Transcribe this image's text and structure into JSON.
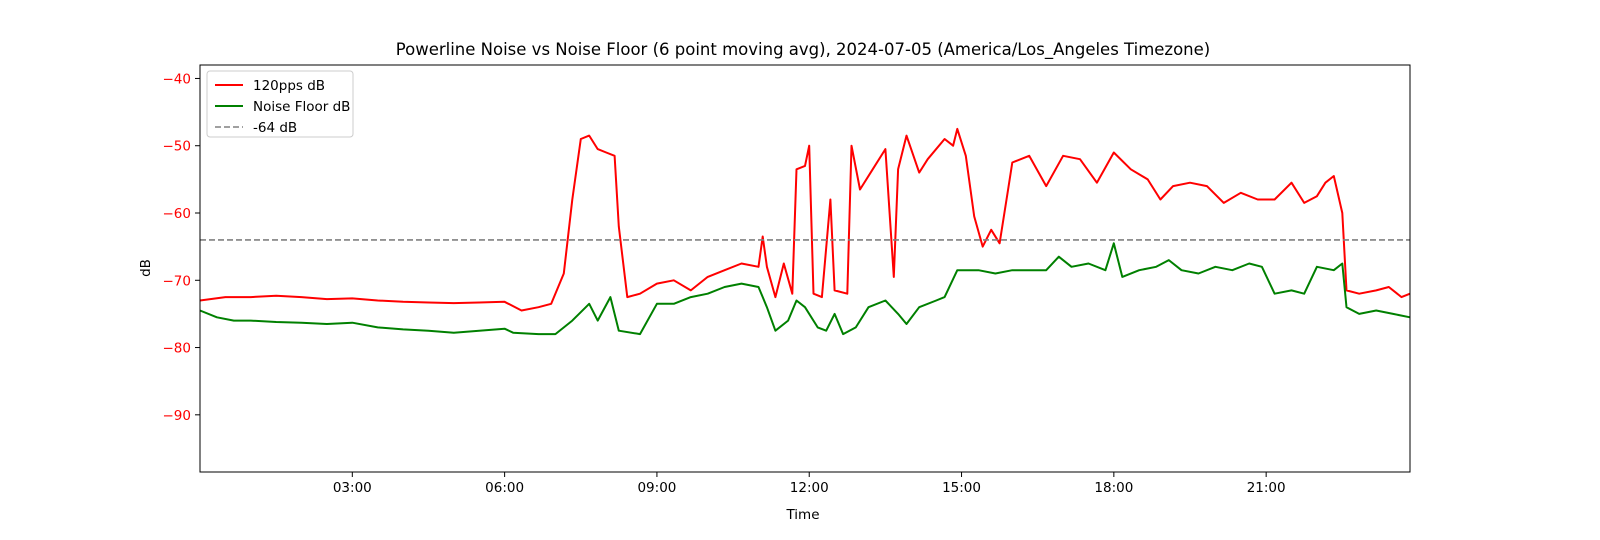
{
  "chart_data": {
    "type": "line",
    "title": "Powerline Noise vs Noise Floor (6 point moving avg), 2024-07-05 (America/Los_Angeles Timezone)",
    "xlabel": "Time",
    "ylabel": "dB",
    "xlim": [
      "00:00",
      "23:50"
    ],
    "ylim": [
      -98.5,
      -38
    ],
    "x_ticks": [
      "03:00",
      "06:00",
      "09:00",
      "12:00",
      "15:00",
      "18:00",
      "21:00"
    ],
    "y_ticks": [
      -40,
      -50,
      -60,
      -70,
      -80,
      -90
    ],
    "grid": false,
    "legend": "top-left",
    "colors": {
      "ylabel": "#ff0000",
      "ytick": "#ff0000",
      "threshold": "#808080"
    },
    "series": [
      {
        "name": "120pps dB",
        "color": "#ff0000",
        "points": [
          [
            "00:00",
            -73
          ],
          [
            "00:30",
            -72.5
          ],
          [
            "01:00",
            -72.5
          ],
          [
            "01:30",
            -72.3
          ],
          [
            "02:00",
            -72.5
          ],
          [
            "02:30",
            -72.8
          ],
          [
            "03:00",
            -72.7
          ],
          [
            "03:30",
            -73.0
          ],
          [
            "04:00",
            -73.2
          ],
          [
            "04:30",
            -73.3
          ],
          [
            "05:00",
            -73.4
          ],
          [
            "05:30",
            -73.3
          ],
          [
            "06:00",
            -73.2
          ],
          [
            "06:20",
            -74.5
          ],
          [
            "06:40",
            -74.0
          ],
          [
            "06:55",
            -73.5
          ],
          [
            "07:10",
            -69.0
          ],
          [
            "07:20",
            -58.0
          ],
          [
            "07:30",
            -49.0
          ],
          [
            "07:40",
            -48.5
          ],
          [
            "07:50",
            -50.5
          ],
          [
            "08:00",
            -51.0
          ],
          [
            "08:10",
            -51.5
          ],
          [
            "08:15",
            -62.0
          ],
          [
            "08:25",
            -72.5
          ],
          [
            "08:40",
            -72.0
          ],
          [
            "09:00",
            -70.5
          ],
          [
            "09:20",
            -70.0
          ],
          [
            "09:40",
            -71.5
          ],
          [
            "10:00",
            -69.5
          ],
          [
            "10:20",
            -68.5
          ],
          [
            "10:40",
            -67.5
          ],
          [
            "11:00",
            -68.0
          ],
          [
            "11:05",
            -63.5
          ],
          [
            "11:10",
            -68.0
          ],
          [
            "11:20",
            -72.5
          ],
          [
            "11:30",
            -67.5
          ],
          [
            "11:40",
            -72.0
          ],
          [
            "11:45",
            -53.5
          ],
          [
            "11:55",
            -53.0
          ],
          [
            "12:00",
            -50.0
          ],
          [
            "12:05",
            -72.0
          ],
          [
            "12:15",
            -72.5
          ],
          [
            "12:25",
            -58.0
          ],
          [
            "12:30",
            -71.5
          ],
          [
            "12:45",
            -72.0
          ],
          [
            "12:50",
            -50.0
          ],
          [
            "13:00",
            -56.5
          ],
          [
            "13:15",
            -53.5
          ],
          [
            "13:30",
            -50.5
          ],
          [
            "13:40",
            -69.5
          ],
          [
            "13:45",
            -53.5
          ],
          [
            "13:55",
            -48.5
          ],
          [
            "14:10",
            -54.0
          ],
          [
            "14:20",
            -52.0
          ],
          [
            "14:40",
            -49.0
          ],
          [
            "14:50",
            -50.0
          ],
          [
            "14:55",
            -47.5
          ],
          [
            "15:05",
            -51.5
          ],
          [
            "15:15",
            -60.5
          ],
          [
            "15:25",
            -65.0
          ],
          [
            "15:35",
            -62.5
          ],
          [
            "15:45",
            -64.5
          ],
          [
            "15:55",
            -56.5
          ],
          [
            "16:00",
            -52.5
          ],
          [
            "16:20",
            -51.5
          ],
          [
            "16:40",
            -56.0
          ],
          [
            "17:00",
            -51.5
          ],
          [
            "17:20",
            -52.0
          ],
          [
            "17:40",
            -55.5
          ],
          [
            "18:00",
            -51.0
          ],
          [
            "18:20",
            -53.5
          ],
          [
            "18:40",
            -55.0
          ],
          [
            "18:55",
            -58.0
          ],
          [
            "19:10",
            -56.0
          ],
          [
            "19:30",
            -55.5
          ],
          [
            "19:50",
            -56.0
          ],
          [
            "20:10",
            -58.5
          ],
          [
            "20:30",
            -57.0
          ],
          [
            "20:50",
            -58.0
          ],
          [
            "21:10",
            -58.0
          ],
          [
            "21:30",
            -55.5
          ],
          [
            "21:45",
            -58.5
          ],
          [
            "22:00",
            -57.5
          ],
          [
            "22:10",
            -55.5
          ],
          [
            "22:20",
            -54.5
          ],
          [
            "22:30",
            -60.0
          ],
          [
            "22:35",
            -71.5
          ],
          [
            "22:50",
            -72.0
          ],
          [
            "23:10",
            -71.5
          ],
          [
            "23:25",
            -71.0
          ],
          [
            "23:40",
            -72.5
          ],
          [
            "23:50",
            -72.0
          ]
        ]
      },
      {
        "name": "Noise Floor dB",
        "color": "#008000",
        "points": [
          [
            "00:00",
            -74.5
          ],
          [
            "00:20",
            -75.5
          ],
          [
            "00:40",
            -76.0
          ],
          [
            "01:00",
            -76.0
          ],
          [
            "01:30",
            -76.2
          ],
          [
            "02:00",
            -76.3
          ],
          [
            "02:30",
            -76.5
          ],
          [
            "03:00",
            -76.3
          ],
          [
            "03:30",
            -77.0
          ],
          [
            "04:00",
            -77.3
          ],
          [
            "04:30",
            -77.5
          ],
          [
            "05:00",
            -77.8
          ],
          [
            "05:30",
            -77.5
          ],
          [
            "06:00",
            -77.2
          ],
          [
            "06:10",
            -77.8
          ],
          [
            "06:40",
            -78.0
          ],
          [
            "07:00",
            -78.0
          ],
          [
            "07:20",
            -76.0
          ],
          [
            "07:40",
            -73.5
          ],
          [
            "07:50",
            -76.0
          ],
          [
            "08:05",
            -72.5
          ],
          [
            "08:15",
            -77.5
          ],
          [
            "08:40",
            -78.0
          ],
          [
            "09:00",
            -73.5
          ],
          [
            "09:20",
            -73.5
          ],
          [
            "09:40",
            -72.5
          ],
          [
            "10:00",
            -72.0
          ],
          [
            "10:20",
            -71.0
          ],
          [
            "10:40",
            -70.5
          ],
          [
            "11:00",
            -71.0
          ],
          [
            "11:10",
            -74.0
          ],
          [
            "11:20",
            -77.5
          ],
          [
            "11:35",
            -76.0
          ],
          [
            "11:45",
            -73.0
          ],
          [
            "11:55",
            -74.0
          ],
          [
            "12:10",
            -77.0
          ],
          [
            "12:20",
            -77.5
          ],
          [
            "12:30",
            -75.0
          ],
          [
            "12:40",
            -78.0
          ],
          [
            "12:55",
            -77.0
          ],
          [
            "13:10",
            -74.0
          ],
          [
            "13:30",
            -73.0
          ],
          [
            "13:45",
            -75.0
          ],
          [
            "13:55",
            -76.5
          ],
          [
            "14:10",
            -74.0
          ],
          [
            "14:30",
            -73.0
          ],
          [
            "14:40",
            -72.5
          ],
          [
            "14:55",
            -68.5
          ],
          [
            "15:20",
            -68.5
          ],
          [
            "15:40",
            -69.0
          ],
          [
            "16:00",
            -68.5
          ],
          [
            "16:20",
            -68.5
          ],
          [
            "16:40",
            -68.5
          ],
          [
            "16:55",
            -66.5
          ],
          [
            "17:10",
            -68.0
          ],
          [
            "17:30",
            -67.5
          ],
          [
            "17:50",
            -68.5
          ],
          [
            "18:00",
            -64.5
          ],
          [
            "18:10",
            -69.5
          ],
          [
            "18:30",
            -68.5
          ],
          [
            "18:50",
            -68.0
          ],
          [
            "19:05",
            -67.0
          ],
          [
            "19:20",
            -68.5
          ],
          [
            "19:40",
            -69.0
          ],
          [
            "20:00",
            -68.0
          ],
          [
            "20:20",
            -68.5
          ],
          [
            "20:40",
            -67.5
          ],
          [
            "20:55",
            -68.0
          ],
          [
            "21:10",
            -72.0
          ],
          [
            "21:30",
            -71.5
          ],
          [
            "21:45",
            -72.0
          ],
          [
            "22:00",
            -68.0
          ],
          [
            "22:20",
            -68.5
          ],
          [
            "22:30",
            -67.5
          ],
          [
            "22:35",
            -74.0
          ],
          [
            "22:50",
            -75.0
          ],
          [
            "23:10",
            -74.5
          ],
          [
            "23:30",
            -75.0
          ],
          [
            "23:50",
            -75.5
          ]
        ]
      },
      {
        "name": "-64 dB",
        "color": "#808080",
        "dashed": true,
        "y": -64
      }
    ]
  }
}
